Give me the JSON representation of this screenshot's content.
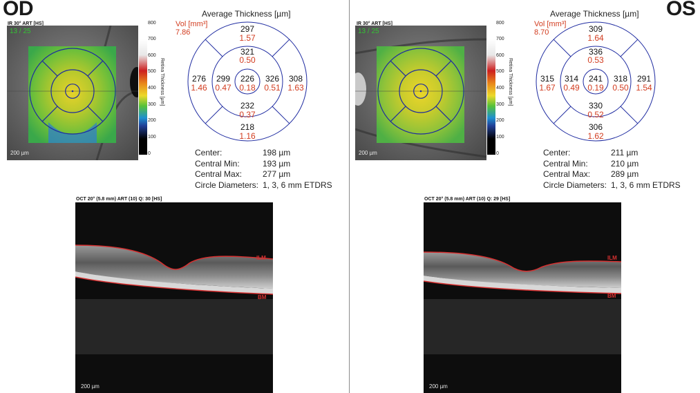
{
  "colors": {
    "volume": "#d23c1f",
    "circle": "#1d2aa0",
    "boundary": "#d63030",
    "frame_counter": "#35c435"
  },
  "colorbar": {
    "ticks": [
      "800",
      "700",
      "600",
      "500",
      "400",
      "300",
      "200",
      "100",
      "0"
    ],
    "label": "Retina Thickness [µm]"
  },
  "od": {
    "eye": "OD",
    "ir_title": "IR 30° ART [HS]",
    "frame": "13 / 25",
    "ir_scale": "200 µm",
    "avg_title": "Average Thickness [µm]",
    "vol_label": "Vol [mm³]",
    "vol_total": "7.86",
    "grid": {
      "center": {
        "t": "226",
        "v": "0.18"
      },
      "inner_sup": {
        "t": "321",
        "v": "0.50"
      },
      "inner_inf": {
        "t": "232",
        "v": "0.37"
      },
      "inner_left": {
        "t": "299",
        "v": "0.47"
      },
      "inner_right": {
        "t": "326",
        "v": "0.51"
      },
      "outer_sup": {
        "t": "297",
        "v": "1.57"
      },
      "outer_inf": {
        "t": "218",
        "v": "1.16"
      },
      "outer_left": {
        "t": "276",
        "v": "1.46"
      },
      "outer_right": {
        "t": "308",
        "v": "1.63"
      }
    },
    "stats": [
      {
        "k": "Center:",
        "v": "198 µm"
      },
      {
        "k": "Central Min:",
        "v": "193 µm"
      },
      {
        "k": "Central Max:",
        "v": "277 µm"
      },
      {
        "k": "Circle Diameters:",
        "v": "1, 3, 6 mm ETDRS"
      }
    ],
    "oct_title": "OCT 20° (5.8 mm) ART (10) Q: 30 [HS]",
    "ilm": "ILM",
    "bm": "BM",
    "oct_scale": "200 µm"
  },
  "os": {
    "eye": "OS",
    "ir_title": "IR 30° ART [HS]",
    "frame": "13 / 25",
    "ir_scale": "200 µm",
    "avg_title": "Average Thickness [µm]",
    "vol_label": "Vol [mm³]",
    "vol_total": "8.70",
    "grid": {
      "center": {
        "t": "241",
        "v": "0.19"
      },
      "inner_sup": {
        "t": "336",
        "v": "0.53"
      },
      "inner_inf": {
        "t": "330",
        "v": "0.52"
      },
      "inner_left": {
        "t": "314",
        "v": "0.49"
      },
      "inner_right": {
        "t": "318",
        "v": "0.50"
      },
      "outer_sup": {
        "t": "309",
        "v": "1.64"
      },
      "outer_inf": {
        "t": "306",
        "v": "1.62"
      },
      "outer_left": {
        "t": "315",
        "v": "1.67"
      },
      "outer_right": {
        "t": "291",
        "v": "1.54"
      }
    },
    "stats": [
      {
        "k": "Center:",
        "v": "211 µm"
      },
      {
        "k": "Central Min:",
        "v": "210 µm"
      },
      {
        "k": "Central Max:",
        "v": "289 µm"
      },
      {
        "k": "Circle Diameters:",
        "v": "1, 3, 6 mm ETDRS"
      }
    ],
    "oct_title": "OCT 20° (5.8 mm) ART (10) Q: 29 [HS]",
    "ilm": "ILM",
    "bm": "BM",
    "oct_scale": "200 µm"
  }
}
